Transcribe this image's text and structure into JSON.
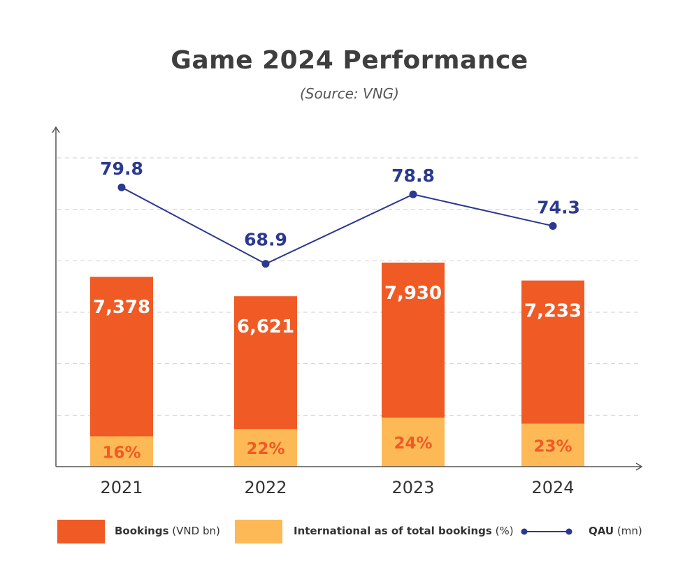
{
  "colors": {
    "bookings": "#f05a24",
    "international": "#fdb955",
    "qau": "#2b3990",
    "axis": "#555555",
    "grid": "#cfcfcf",
    "pct_text": "#f05a24",
    "bar_text": "#ffffff"
  },
  "chart_data": {
    "type": "bar",
    "title": "Game 2024 Performance",
    "subtitle": "(Source: VNG)",
    "categories": [
      "2021",
      "2022",
      "2023",
      "2024"
    ],
    "series": [
      {
        "name": "Bookings",
        "unit": "(VND bn)",
        "kind": "bar",
        "values": [
          7378,
          6621,
          7930,
          7233
        ],
        "labels": [
          "7,378",
          "6,621",
          "7,930",
          "7,233"
        ]
      },
      {
        "name": "International as of total bookings",
        "unit": "(%)",
        "kind": "stacked-share",
        "values": [
          16,
          22,
          24,
          23
        ],
        "labels": [
          "16%",
          "22%",
          "24%",
          "23%"
        ]
      },
      {
        "name": "QAU",
        "unit": "(mn)",
        "kind": "line",
        "values": [
          79.8,
          68.9,
          78.8,
          74.3
        ],
        "labels": [
          "79.8",
          "68.9",
          "78.8",
          "74.3"
        ]
      }
    ],
    "bookings_scale": [
      0,
      12000
    ],
    "qau_scale": [
      40,
      84
    ],
    "gridlines": 6,
    "legend_position": "bottom"
  }
}
